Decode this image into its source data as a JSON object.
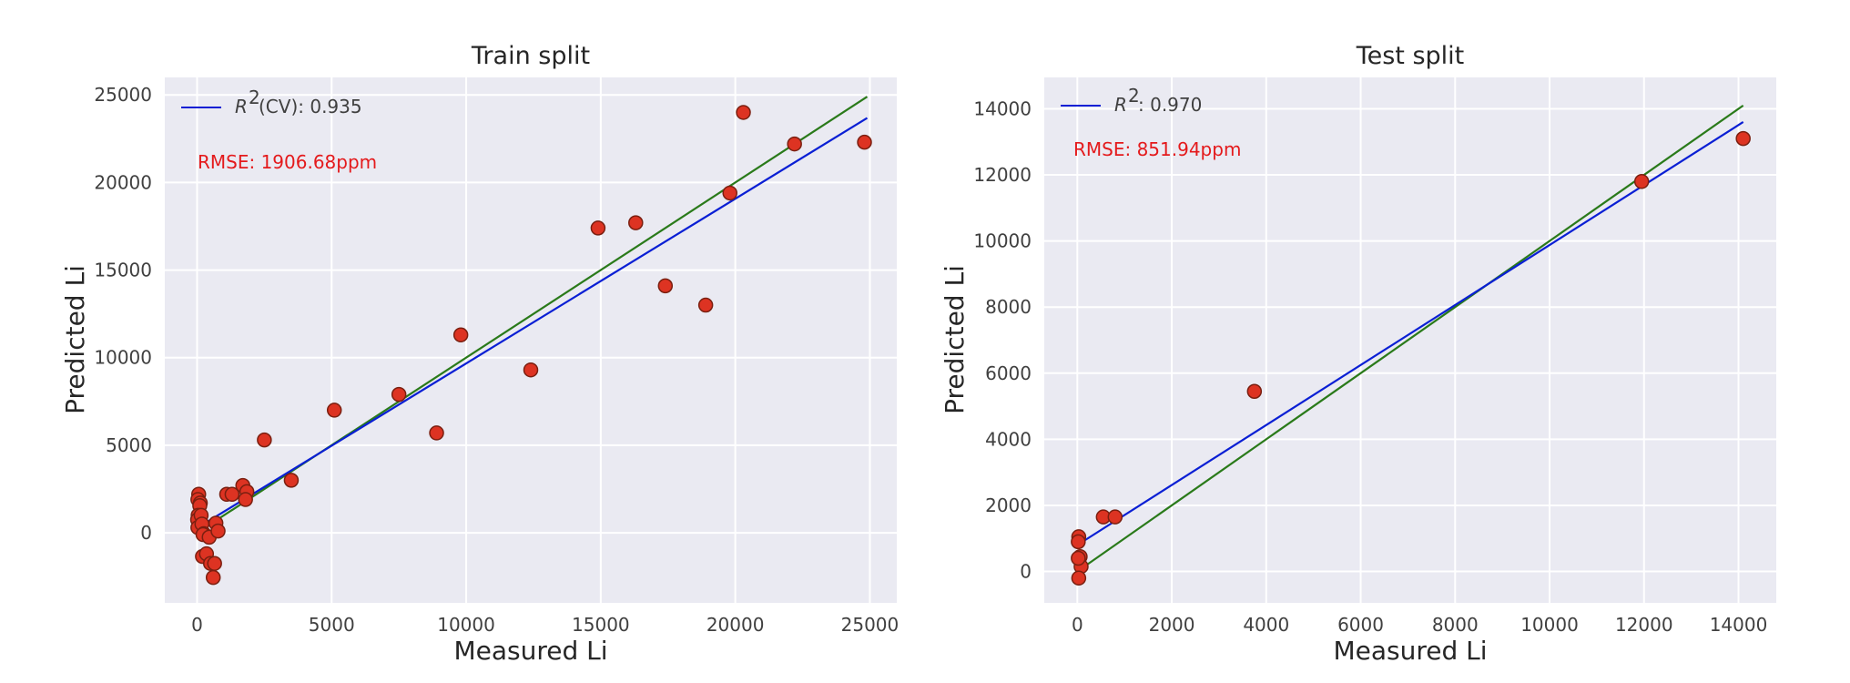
{
  "colors": {
    "axes_bg": "#eaeaf2",
    "grid": "#ffffff",
    "point_fill": "#dd3322",
    "point_edge": "#7a1f10",
    "fit_line": "#0a1fd4",
    "identity_line": "#2a7a1a",
    "rmse_text": "#e41a1c"
  },
  "chart_data": [
    {
      "type": "scatter",
      "title": "Train split",
      "xlabel": "Measured Li",
      "ylabel": "Predicted Li",
      "xlim": [
        -1200,
        26000
      ],
      "ylim": [
        -4000,
        26000
      ],
      "xticks": [
        0,
        5000,
        10000,
        15000,
        20000,
        25000
      ],
      "yticks": [
        0,
        5000,
        10000,
        15000,
        20000,
        25000
      ],
      "grid": true,
      "legend_position": "top-left",
      "legend_label": "(CV): 0.935",
      "annotation": "RMSE: 1906.68ppm",
      "fit_line": {
        "x": [
          0,
          24900
        ],
        "y": [
          270,
          23680
        ]
      },
      "identity_line": {
        "x": [
          0,
          24900
        ],
        "y": [
          0,
          24900
        ]
      },
      "points": {
        "x": [
          60,
          30,
          120,
          100,
          40,
          20,
          30,
          150,
          180,
          250,
          220,
          200,
          350,
          450,
          500,
          650,
          600,
          700,
          780,
          1100,
          1300,
          1700,
          1850,
          1800,
          2500,
          3500,
          5100,
          7500,
          8900,
          9800,
          12400,
          14900,
          16300,
          17400,
          18900,
          19800,
          20300,
          22200,
          24800
        ],
        "y": [
          2200,
          1900,
          1700,
          1550,
          1000,
          750,
          300,
          1000,
          500,
          -50,
          -100,
          -1350,
          -1200,
          -250,
          -1750,
          -1750,
          -2550,
          550,
          100,
          2200,
          2200,
          2700,
          2350,
          1900,
          5300,
          3000,
          7000,
          7900,
          5700,
          11300,
          9300,
          17400,
          17700,
          14100,
          13000,
          19400,
          24000,
          22200,
          22300
        ]
      }
    },
    {
      "type": "scatter",
      "title": "Test split",
      "xlabel": "Measured Li",
      "ylabel": "Predicted Li",
      "xlim": [
        -700,
        14800
      ],
      "ylim": [
        -950,
        14950
      ],
      "xticks": [
        0,
        2000,
        4000,
        6000,
        8000,
        10000,
        12000,
        14000
      ],
      "yticks": [
        0,
        2000,
        4000,
        6000,
        8000,
        10000,
        12000,
        14000
      ],
      "grid": true,
      "legend_position": "top-left",
      "legend_label": ": 0.970",
      "annotation": "RMSE: 851.94ppm",
      "fit_line": {
        "x": [
          0,
          14100
        ],
        "y": [
          800,
          13600
        ]
      },
      "identity_line": {
        "x": [
          0,
          14100
        ],
        "y": [
          0,
          14100
        ]
      },
      "points": {
        "x": [
          30,
          20,
          40,
          60,
          80,
          20,
          30,
          550,
          800,
          3750,
          11950,
          14100
        ],
        "y": [
          1050,
          900,
          400,
          450,
          150,
          400,
          -200,
          1650,
          1650,
          5450,
          11800,
          13100
        ]
      }
    }
  ]
}
